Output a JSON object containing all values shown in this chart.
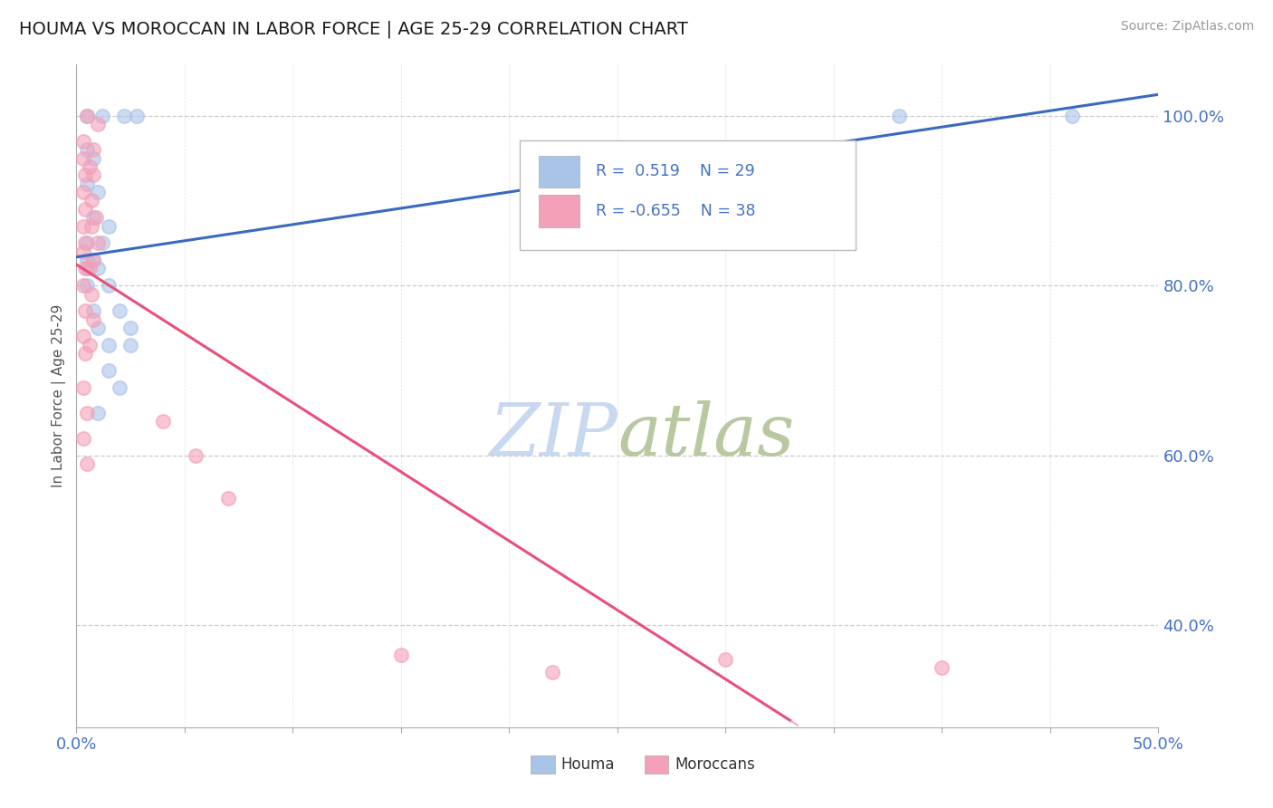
{
  "title": "HOUMA VS MOROCCAN IN LABOR FORCE | AGE 25-29 CORRELATION CHART",
  "source_text": "Source: ZipAtlas.com",
  "ylabel": "In Labor Force | Age 25-29",
  "xlim": [
    0.0,
    0.5
  ],
  "ylim": [
    0.28,
    1.06
  ],
  "houma_R": 0.519,
  "houma_N": 29,
  "moroccan_R": -0.655,
  "moroccan_N": 38,
  "houma_color": "#aac4e8",
  "moroccan_color": "#f4a0b8",
  "houma_line_color": "#3a6abf",
  "moroccan_line_color": "#e8507a",
  "moroccan_line_dash_color": "#e8b0c0",
  "watermark_zip_color": "#c8d8f0",
  "watermark_atlas_color": "#b8c8a0",
  "title_color": "#1a1a1a",
  "axis_label_color": "#4472c4",
  "grid_color": "#cccccc",
  "houma_scatter": [
    [
      0.005,
      1.0
    ],
    [
      0.012,
      1.0
    ],
    [
      0.022,
      1.0
    ],
    [
      0.028,
      1.0
    ],
    [
      0.38,
      1.0
    ],
    [
      0.46,
      1.0
    ],
    [
      0.005,
      0.96
    ],
    [
      0.008,
      0.95
    ],
    [
      0.005,
      0.92
    ],
    [
      0.01,
      0.91
    ],
    [
      0.008,
      0.88
    ],
    [
      0.015,
      0.87
    ],
    [
      0.005,
      0.85
    ],
    [
      0.012,
      0.85
    ],
    [
      0.005,
      0.83
    ],
    [
      0.008,
      0.83
    ],
    [
      0.005,
      0.82
    ],
    [
      0.01,
      0.82
    ],
    [
      0.005,
      0.8
    ],
    [
      0.015,
      0.8
    ],
    [
      0.008,
      0.77
    ],
    [
      0.02,
      0.77
    ],
    [
      0.01,
      0.75
    ],
    [
      0.025,
      0.75
    ],
    [
      0.015,
      0.73
    ],
    [
      0.025,
      0.73
    ],
    [
      0.015,
      0.7
    ],
    [
      0.02,
      0.68
    ],
    [
      0.01,
      0.65
    ]
  ],
  "moroccan_scatter": [
    [
      0.005,
      1.0
    ],
    [
      0.01,
      0.99
    ],
    [
      0.003,
      0.97
    ],
    [
      0.008,
      0.96
    ],
    [
      0.003,
      0.95
    ],
    [
      0.006,
      0.94
    ],
    [
      0.004,
      0.93
    ],
    [
      0.008,
      0.93
    ],
    [
      0.003,
      0.91
    ],
    [
      0.007,
      0.9
    ],
    [
      0.004,
      0.89
    ],
    [
      0.009,
      0.88
    ],
    [
      0.003,
      0.87
    ],
    [
      0.007,
      0.87
    ],
    [
      0.004,
      0.85
    ],
    [
      0.01,
      0.85
    ],
    [
      0.003,
      0.84
    ],
    [
      0.008,
      0.83
    ],
    [
      0.004,
      0.82
    ],
    [
      0.006,
      0.82
    ],
    [
      0.003,
      0.8
    ],
    [
      0.007,
      0.79
    ],
    [
      0.004,
      0.77
    ],
    [
      0.008,
      0.76
    ],
    [
      0.003,
      0.74
    ],
    [
      0.006,
      0.73
    ],
    [
      0.004,
      0.72
    ],
    [
      0.003,
      0.68
    ],
    [
      0.005,
      0.65
    ],
    [
      0.003,
      0.62
    ],
    [
      0.005,
      0.59
    ],
    [
      0.04,
      0.64
    ],
    [
      0.055,
      0.6
    ],
    [
      0.07,
      0.55
    ],
    [
      0.15,
      0.365
    ],
    [
      0.22,
      0.345
    ],
    [
      0.3,
      0.36
    ],
    [
      0.4,
      0.35
    ]
  ]
}
